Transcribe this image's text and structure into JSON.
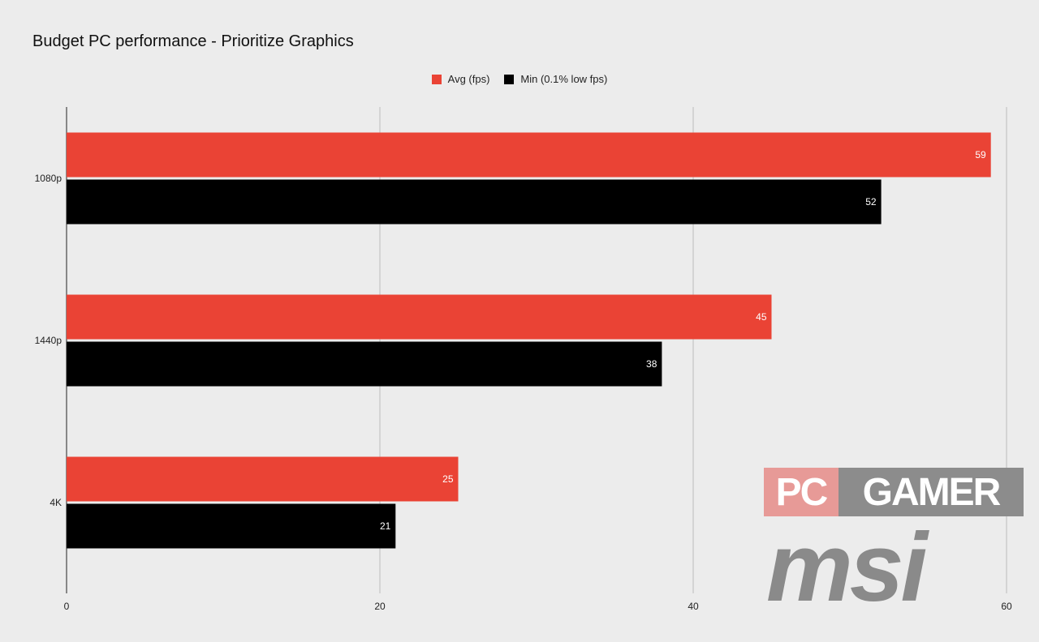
{
  "chart_data": {
    "type": "bar",
    "orientation": "horizontal",
    "title": "Budget PC performance - Prioritize Graphics",
    "categories": [
      "1080p",
      "1440p",
      "4K"
    ],
    "series": [
      {
        "name": "Avg (fps)",
        "color": "#ea4335",
        "values": [
          59,
          45,
          25
        ]
      },
      {
        "name": "Min (0.1% low fps)",
        "color": "#000000",
        "values": [
          52,
          38,
          21
        ]
      }
    ],
    "xlim": [
      0,
      60
    ],
    "x_ticks": [
      0,
      20,
      40,
      60
    ],
    "grid": true,
    "legend": "top-center",
    "data_labels": true
  },
  "watermark": {
    "pc": "PC",
    "gamer": "GAMER",
    "brand": "msi"
  }
}
